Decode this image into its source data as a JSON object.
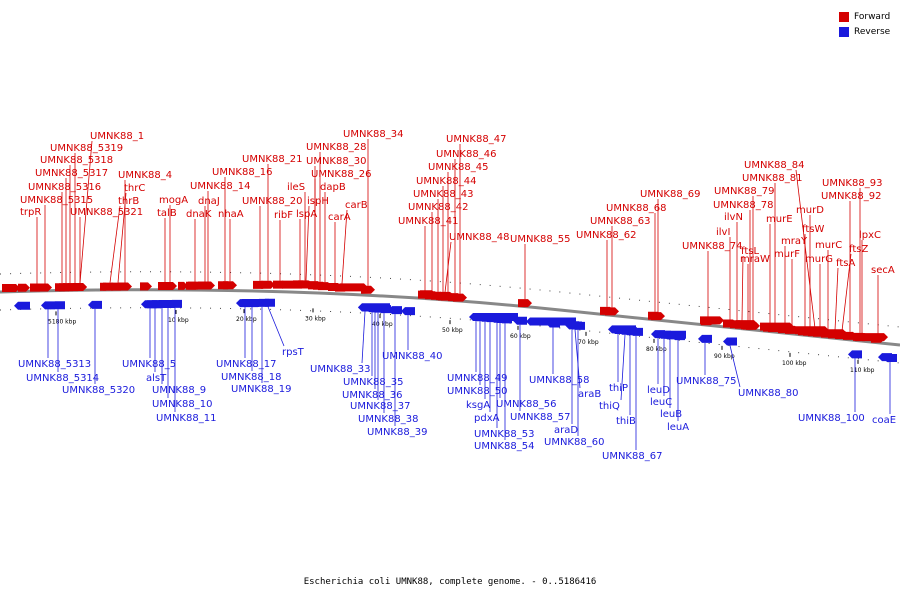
{
  "title": "Escherichia coli UMNK88, complete genome. - 0..5186416",
  "legend": [
    {
      "label": "Forward",
      "color": "#d40000"
    },
    {
      "label": "Reverse",
      "color": "#1a1adc"
    }
  ],
  "colors": {
    "forward": "#d40000",
    "reverse": "#1a1adc",
    "backbone": "#777777"
  },
  "scale_labels": [
    "5180 kbp",
    "10 kbp",
    "20 kbp",
    "30 kbp",
    "40 kbp",
    "50 kbp",
    "60 kbp",
    "70 kbp",
    "80 kbp",
    "90 kbp",
    "100 kbp",
    "110 kbp"
  ],
  "forward_labels": [
    "trpR",
    "UMNK88_5315",
    "UMNK88_5316",
    "UMNK88_5317",
    "UMNK88_5318",
    "UMNK88_5319",
    "UMNK88_1",
    "UMNK88_5321",
    "thrB",
    "thrC",
    "UMNK88_4",
    "talB",
    "mogA",
    "dnaK",
    "dnaJ",
    "nhaA",
    "UMNK88_14",
    "UMNK88_16",
    "ribF",
    "UMNK88_20",
    "UMNK88_21",
    "lspA",
    "ispH",
    "ileS",
    "carA",
    "UMNK88_26",
    "dapB",
    "UMNK88_30",
    "UMNK88_28",
    "carB",
    "UMNK88_34",
    "UMNK88_41",
    "UMNK88_42",
    "UMNK88_43",
    "UMNK88_44",
    "UMNK88_45",
    "UMNK88_46",
    "UMNK88_47",
    "UMNK88_48",
    "UMNK88_55",
    "UMNK88_62",
    "UMNK88_63",
    "UMNK88_68",
    "UMNK88_69",
    "UMNK88_74",
    "ilvI",
    "ftsL",
    "ilvN",
    "mraW",
    "UMNK88_78",
    "UMNK88_79",
    "murE",
    "UMNK88_81",
    "mraY",
    "murF",
    "ftsW",
    "murD",
    "UMNK88_84",
    "murG",
    "murC",
    "ftsA",
    "ftsZ",
    "UMNK88_92",
    "UMNK88_93",
    "lpxC",
    "secA"
  ],
  "reverse_labels": [
    "UMNK88_5313",
    "UMNK88_5314",
    "UMNK88_5320",
    "UMNK88_5",
    "alsT",
    "UMNK88_9",
    "UMNK88_10",
    "UMNK88_11",
    "UMNK88_17",
    "UMNK88_18",
    "UMNK88_19",
    "rpsT",
    "UMNK88_33",
    "UMNK88_35",
    "UMNK88_36",
    "UMNK88_37",
    "UMNK88_38",
    "UMNK88_39",
    "UMNK88_40",
    "UMNK88_49",
    "UMNK88_50",
    "ksgA",
    "pdxA",
    "UMNK88_53",
    "UMNK88_54",
    "UMNK88_56",
    "UMNK88_57",
    "UMNK88_58",
    "araB",
    "araD",
    "UMNK88_60",
    "thiP",
    "thiQ",
    "thiB",
    "UMNK88_67",
    "leuD",
    "leuC",
    "leuB",
    "leuA",
    "UMNK88_75",
    "UMNK88_80",
    "UMNK88_100",
    "coaE"
  ]
}
